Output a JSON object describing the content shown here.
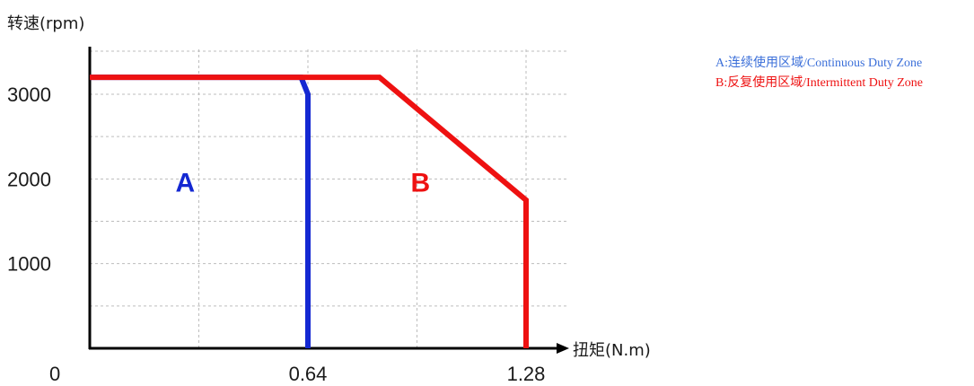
{
  "chart_data": {
    "type": "line",
    "ylabel": "转速(rpm)",
    "xlabel": "扭矩(N.m)",
    "origin_label": "0",
    "x_ticks": [
      0.64,
      1.28
    ],
    "y_ticks": [
      1000,
      2000,
      3000
    ],
    "xlim": [
      0,
      1.4
    ],
    "ylim": [
      0,
      3500
    ],
    "grid": true,
    "series": [
      {
        "name": "A",
        "color": "#1428d2",
        "points": [
          [
            0,
            3200
          ],
          [
            0.62,
            3200
          ],
          [
            0.64,
            3000
          ],
          [
            0.64,
            0
          ]
        ]
      },
      {
        "name": "B",
        "color": "#ee1111",
        "points": [
          [
            0,
            3200
          ],
          [
            0.85,
            3200
          ],
          [
            1.28,
            1750
          ],
          [
            1.28,
            0
          ]
        ]
      }
    ],
    "zone_labels": [
      {
        "text": "A",
        "x": 0.28,
        "y": 1850,
        "color": "#1428d2"
      },
      {
        "text": "B",
        "x": 0.97,
        "y": 1850,
        "color": "#ee1111"
      }
    ]
  },
  "legend": {
    "items": [
      {
        "text": "A:连续使用区域/Continuous  Duty  Zone",
        "color": "#3b6fd9"
      },
      {
        "text": "B:反复使用区域/Intermittent  Duty  Zone",
        "color": "#ee1111"
      }
    ]
  }
}
